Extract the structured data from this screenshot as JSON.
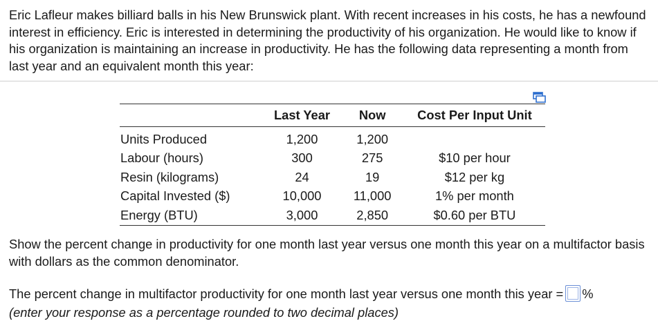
{
  "problem": {
    "intro": "Eric Lafleur makes billiard balls in his New Brunswick plant. With recent increases in his costs, he has a newfound interest in efficiency. Eric is interested in determining the productivity of his organization. He would like to know if his organization is maintaining an increase in productivity. He has the following data representing a month from last year and an equivalent month this year:"
  },
  "table": {
    "headers": {
      "label": "",
      "last_year": "Last Year",
      "now": "Now",
      "cost": "Cost Per Input Unit"
    },
    "rows": [
      {
        "label": "Units Produced",
        "last_year": "1,200",
        "now": "1,200",
        "cost": ""
      },
      {
        "label": "Labour (hours)",
        "last_year": "300",
        "now": "275",
        "cost": "$10 per hour"
      },
      {
        "label": "Resin (kilograms)",
        "last_year": "24",
        "now": "19",
        "cost": "$12 per kg"
      },
      {
        "label": "Capital Invested ($)",
        "last_year": "10,000",
        "now": "11,000",
        "cost": "1% per month"
      },
      {
        "label": "Energy (BTU)",
        "last_year": "3,000",
        "now": "2,850",
        "cost": "$0.60 per BTU"
      }
    ]
  },
  "question": {
    "text": "Show the percent change in productivity for one month last year versus one month this year on a multifactor basis with dollars as the common denominator."
  },
  "answer": {
    "prompt": "The percent change in multifactor productivity for one month last year versus one month this year =",
    "value": "",
    "unit": "%",
    "instruction": "(enter your response as a percentage rounded to two decimal places)"
  },
  "icons": {
    "copy": "copy-icon"
  },
  "colors": {
    "text": "#1a1a1a",
    "input_border": "#6b8fd6",
    "icon_accent": "#2f6fcf"
  }
}
